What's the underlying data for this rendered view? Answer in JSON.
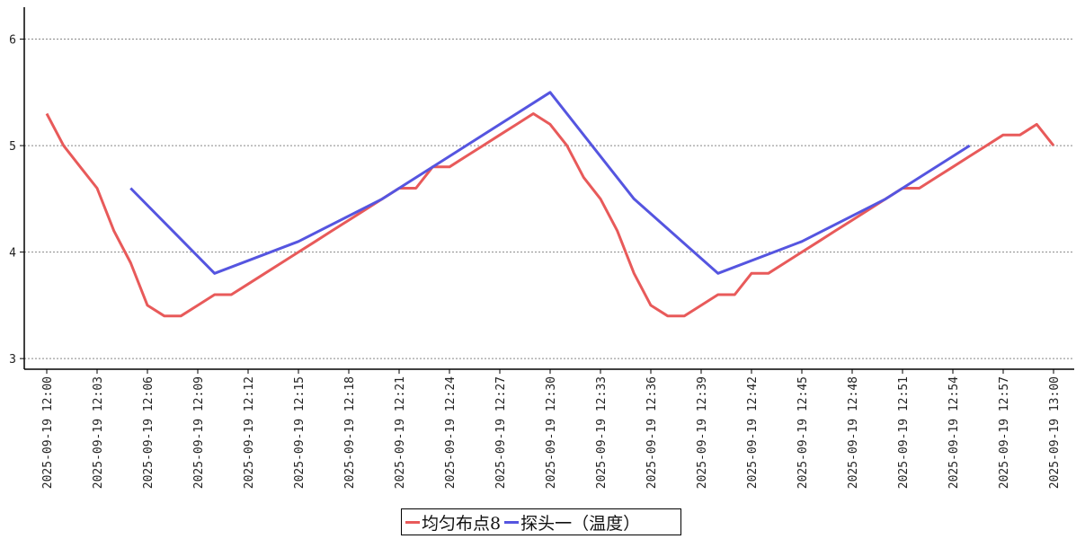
{
  "chart_data": {
    "type": "line",
    "title": "",
    "xlabel": "",
    "ylabel": "",
    "ylim": [
      2.9,
      6.3
    ],
    "yticks": [
      3,
      4,
      5,
      6
    ],
    "grid": "horizontal-dashed",
    "legend_position": "bottom-center",
    "xlim": [
      "2025-09-19 12:00",
      "2025-09-19 13:00"
    ],
    "xtick_labels": [
      "2025-09-19 12:00",
      "2025-09-19 12:03",
      "2025-09-19 12:06",
      "2025-09-19 12:09",
      "2025-09-19 12:12",
      "2025-09-19 12:15",
      "2025-09-19 12:18",
      "2025-09-19 12:21",
      "2025-09-19 12:24",
      "2025-09-19 12:27",
      "2025-09-19 12:30",
      "2025-09-19 12:33",
      "2025-09-19 12:36",
      "2025-09-19 12:39",
      "2025-09-19 12:42",
      "2025-09-19 12:45",
      "2025-09-19 12:48",
      "2025-09-19 12:51",
      "2025-09-19 12:54",
      "2025-09-19 12:57",
      "2025-09-19 13:00"
    ],
    "series": [
      {
        "name": "均匀布点8",
        "color": "#e85a5a",
        "points": [
          [
            "2025-09-19 12:00",
            5.3
          ],
          [
            "2025-09-19 12:01",
            5.0
          ],
          [
            "2025-09-19 12:02",
            4.8
          ],
          [
            "2025-09-19 12:03",
            4.6
          ],
          [
            "2025-09-19 12:04",
            4.2
          ],
          [
            "2025-09-19 12:05",
            3.9
          ],
          [
            "2025-09-19 12:06",
            3.5
          ],
          [
            "2025-09-19 12:07",
            3.4
          ],
          [
            "2025-09-19 12:08",
            3.4
          ],
          [
            "2025-09-19 12:09",
            3.5
          ],
          [
            "2025-09-19 12:10",
            3.6
          ],
          [
            "2025-09-19 12:11",
            3.6
          ],
          [
            "2025-09-19 12:12",
            3.7
          ],
          [
            "2025-09-19 12:13",
            3.8
          ],
          [
            "2025-09-19 12:14",
            3.9
          ],
          [
            "2025-09-19 12:15",
            4.0
          ],
          [
            "2025-09-19 12:16",
            4.1
          ],
          [
            "2025-09-19 12:17",
            4.2
          ],
          [
            "2025-09-19 12:18",
            4.3
          ],
          [
            "2025-09-19 12:19",
            4.4
          ],
          [
            "2025-09-19 12:20",
            4.5
          ],
          [
            "2025-09-19 12:21",
            4.6
          ],
          [
            "2025-09-19 12:22",
            4.6
          ],
          [
            "2025-09-19 12:23",
            4.8
          ],
          [
            "2025-09-19 12:24",
            4.8
          ],
          [
            "2025-09-19 12:25",
            4.9
          ],
          [
            "2025-09-19 12:26",
            5.0
          ],
          [
            "2025-09-19 12:27",
            5.1
          ],
          [
            "2025-09-19 12:28",
            5.2
          ],
          [
            "2025-09-19 12:29",
            5.3
          ],
          [
            "2025-09-19 12:30",
            5.2
          ],
          [
            "2025-09-19 12:31",
            5.0
          ],
          [
            "2025-09-19 12:32",
            4.7
          ],
          [
            "2025-09-19 12:33",
            4.5
          ],
          [
            "2025-09-19 12:34",
            4.2
          ],
          [
            "2025-09-19 12:35",
            3.8
          ],
          [
            "2025-09-19 12:36",
            3.5
          ],
          [
            "2025-09-19 12:37",
            3.4
          ],
          [
            "2025-09-19 12:38",
            3.4
          ],
          [
            "2025-09-19 12:39",
            3.5
          ],
          [
            "2025-09-19 12:40",
            3.6
          ],
          [
            "2025-09-19 12:41",
            3.6
          ],
          [
            "2025-09-19 12:42",
            3.8
          ],
          [
            "2025-09-19 12:43",
            3.8
          ],
          [
            "2025-09-19 12:44",
            3.9
          ],
          [
            "2025-09-19 12:45",
            4.0
          ],
          [
            "2025-09-19 12:46",
            4.1
          ],
          [
            "2025-09-19 12:47",
            4.2
          ],
          [
            "2025-09-19 12:48",
            4.3
          ],
          [
            "2025-09-19 12:49",
            4.4
          ],
          [
            "2025-09-19 12:50",
            4.5
          ],
          [
            "2025-09-19 12:51",
            4.6
          ],
          [
            "2025-09-19 12:52",
            4.6
          ],
          [
            "2025-09-19 12:53",
            4.7
          ],
          [
            "2025-09-19 12:54",
            4.8
          ],
          [
            "2025-09-19 12:55",
            4.9
          ],
          [
            "2025-09-19 12:56",
            5.0
          ],
          [
            "2025-09-19 12:57",
            5.1
          ],
          [
            "2025-09-19 12:58",
            5.1
          ],
          [
            "2025-09-19 12:59",
            5.2
          ],
          [
            "2025-09-19 13:00",
            5.0
          ]
        ]
      },
      {
        "name": "探头一（温度）",
        "color": "#5555e0",
        "points": [
          [
            "2025-09-19 12:05",
            4.6
          ],
          [
            "2025-09-19 12:10",
            3.8
          ],
          [
            "2025-09-19 12:15",
            4.1
          ],
          [
            "2025-09-19 12:20",
            4.5
          ],
          [
            "2025-09-19 12:30",
            5.5
          ],
          [
            "2025-09-19 12:35",
            4.5
          ],
          [
            "2025-09-19 12:40",
            3.8
          ],
          [
            "2025-09-19 12:45",
            4.1
          ],
          [
            "2025-09-19 12:50",
            4.5
          ],
          [
            "2025-09-19 12:55",
            5.0
          ]
        ]
      }
    ]
  }
}
